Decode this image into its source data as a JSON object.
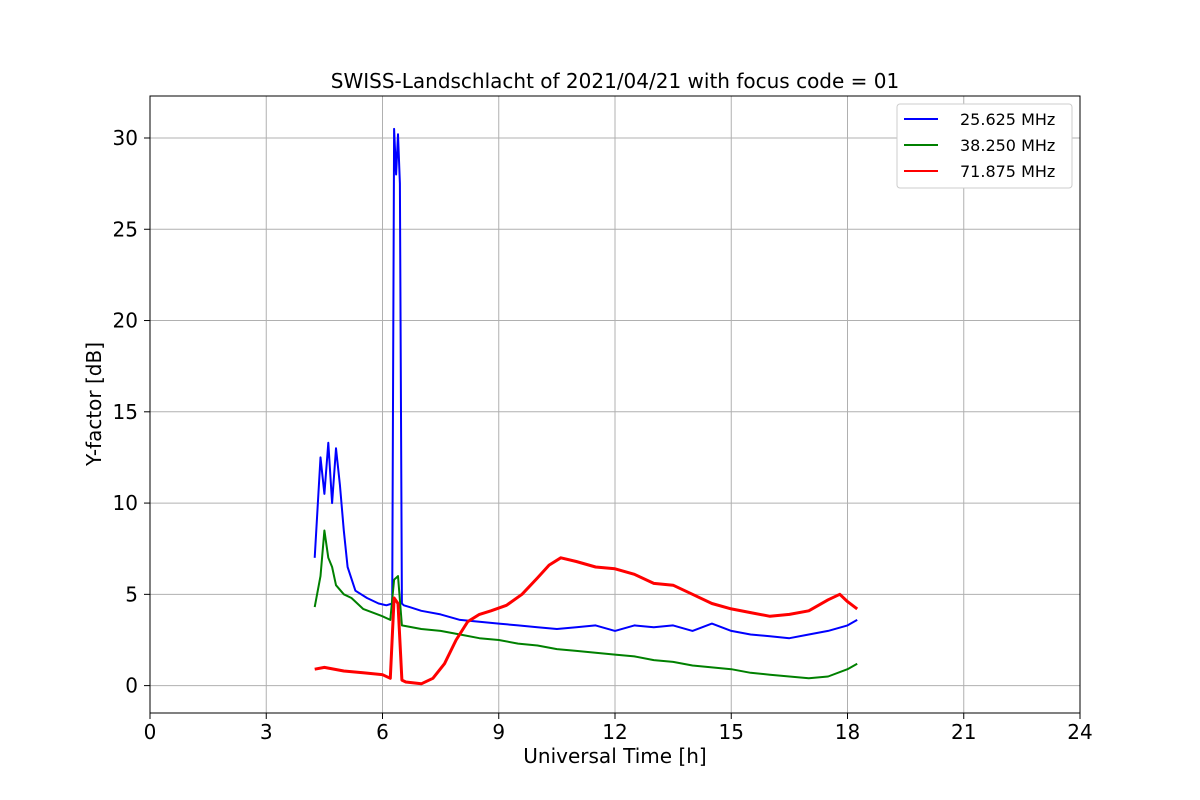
{
  "chart_data": {
    "type": "line",
    "title": "SWISS-Landschlacht of 2021/04/21 with focus code = 01",
    "xlabel": "Universal Time [h]",
    "ylabel": "Y-factor [dB]",
    "xlim": [
      0,
      24
    ],
    "ylim": [
      -1.5,
      32.3
    ],
    "xticks": [
      0,
      3,
      6,
      9,
      12,
      15,
      18,
      21,
      24
    ],
    "yticks": [
      0,
      5,
      10,
      15,
      20,
      25,
      30
    ],
    "grid": true,
    "legend_position": "top-right",
    "series": [
      {
        "name": "25.625 MHz",
        "color": "#0000ff",
        "x": [
          4.25,
          4.4,
          4.5,
          4.6,
          4.7,
          4.8,
          4.9,
          5.0,
          5.1,
          5.3,
          5.6,
          5.9,
          6.1,
          6.25,
          6.3,
          6.35,
          6.4,
          6.45,
          6.5,
          6.55,
          6.7,
          7.0,
          7.5,
          8.0,
          8.5,
          9.0,
          9.5,
          10.0,
          10.5,
          11.0,
          11.5,
          12.0,
          12.5,
          13.0,
          13.5,
          14.0,
          14.5,
          15.0,
          15.5,
          16.0,
          16.5,
          17.0,
          17.5,
          18.0,
          18.25
        ],
        "values": [
          7.0,
          12.5,
          10.5,
          13.3,
          10.0,
          13.0,
          11.0,
          8.5,
          6.5,
          5.2,
          4.8,
          4.5,
          4.4,
          4.5,
          30.5,
          28.0,
          30.2,
          27.5,
          4.5,
          4.4,
          4.3,
          4.1,
          3.9,
          3.6,
          3.5,
          3.4,
          3.3,
          3.2,
          3.1,
          3.2,
          3.3,
          3.0,
          3.3,
          3.2,
          3.3,
          3.0,
          3.4,
          3.0,
          2.8,
          2.7,
          2.6,
          2.8,
          3.0,
          3.3,
          3.6
        ]
      },
      {
        "name": "38.250 MHz",
        "color": "#008000",
        "x": [
          4.25,
          4.4,
          4.5,
          4.6,
          4.7,
          4.8,
          5.0,
          5.2,
          5.5,
          6.0,
          6.2,
          6.3,
          6.4,
          6.5,
          7.0,
          7.5,
          8.0,
          8.5,
          9.0,
          9.5,
          10.0,
          10.5,
          11.0,
          11.5,
          12.0,
          12.5,
          13.0,
          13.5,
          14.0,
          14.5,
          15.0,
          15.5,
          16.0,
          16.5,
          17.0,
          17.5,
          18.0,
          18.25
        ],
        "values": [
          4.3,
          6.0,
          8.5,
          7.0,
          6.5,
          5.5,
          5.0,
          4.8,
          4.2,
          3.8,
          3.6,
          5.8,
          6.0,
          3.3,
          3.1,
          3.0,
          2.8,
          2.6,
          2.5,
          2.3,
          2.2,
          2.0,
          1.9,
          1.8,
          1.7,
          1.6,
          1.4,
          1.3,
          1.1,
          1.0,
          0.9,
          0.7,
          0.6,
          0.5,
          0.4,
          0.5,
          0.9,
          1.2
        ]
      },
      {
        "name": "71.875 MHz",
        "color": "#ff0000",
        "x": [
          4.25,
          4.5,
          5.0,
          5.5,
          6.0,
          6.2,
          6.3,
          6.4,
          6.5,
          6.6,
          7.0,
          7.3,
          7.6,
          7.9,
          8.2,
          8.5,
          8.8,
          9.2,
          9.6,
          10.0,
          10.3,
          10.6,
          11.0,
          11.5,
          12.0,
          12.5,
          13.0,
          13.5,
          14.0,
          14.5,
          15.0,
          15.5,
          16.0,
          16.5,
          17.0,
          17.5,
          17.8,
          18.0,
          18.25
        ],
        "values": [
          0.9,
          1.0,
          0.8,
          0.7,
          0.6,
          0.4,
          4.8,
          4.5,
          0.3,
          0.2,
          0.1,
          0.4,
          1.2,
          2.5,
          3.5,
          3.9,
          4.1,
          4.4,
          5.0,
          5.9,
          6.6,
          7.0,
          6.8,
          6.5,
          6.4,
          6.1,
          5.6,
          5.5,
          5.0,
          4.5,
          4.2,
          4.0,
          3.8,
          3.9,
          4.1,
          4.7,
          5.0,
          4.6,
          4.2
        ]
      }
    ]
  }
}
